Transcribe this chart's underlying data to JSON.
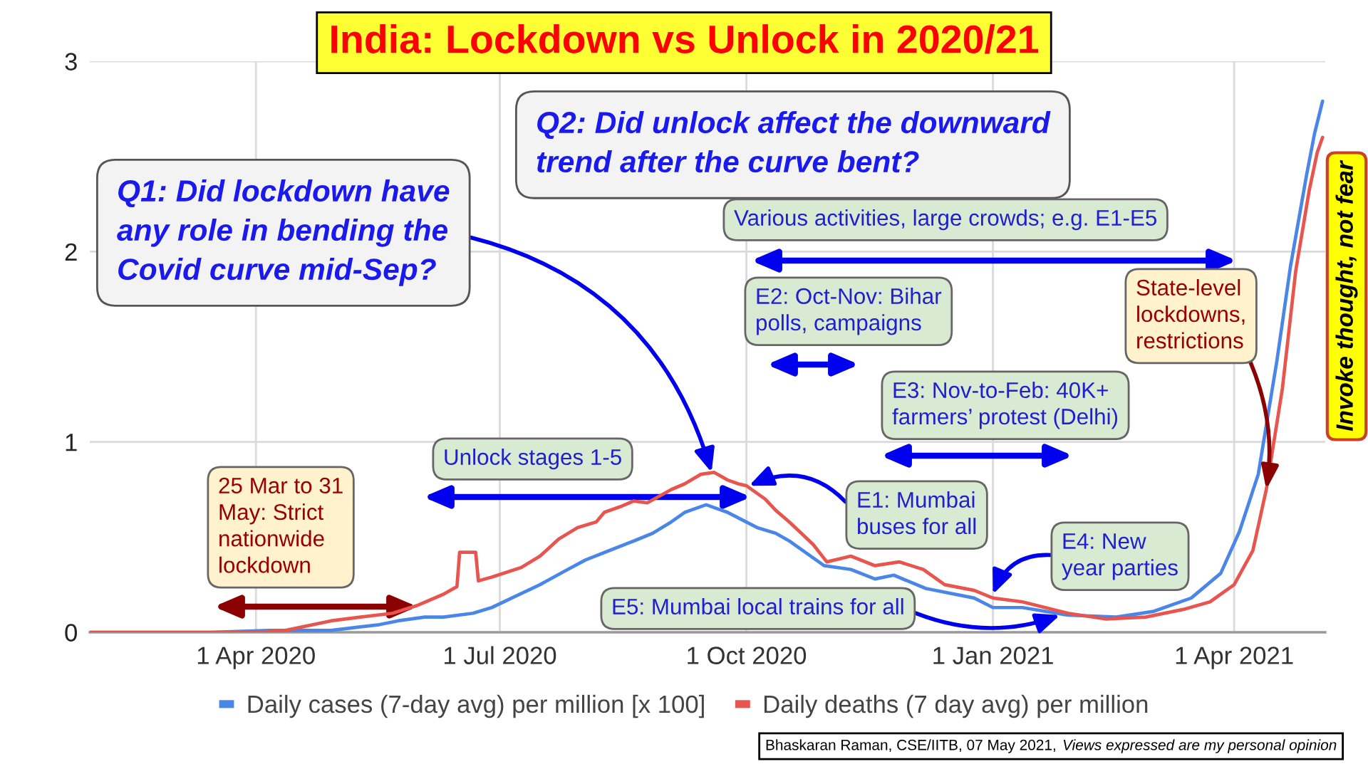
{
  "chart_data": {
    "type": "line",
    "title": "India: Lockdown vs Unlock in 2020/21",
    "series": [
      {
        "name": "Daily cases (7-day avg) per million [x 100]",
        "color": "#4a86e8",
        "x": [
          "2020-01-30",
          "2020-03-15",
          "2020-04-06",
          "2020-04-29",
          "2020-05-17",
          "2020-05-24",
          "2020-06-03",
          "2020-06-10",
          "2020-06-21",
          "2020-06-28",
          "2020-07-07",
          "2020-07-16",
          "2020-07-25",
          "2020-08-02",
          "2020-08-11",
          "2020-08-20",
          "2020-08-27",
          "2020-09-03",
          "2020-09-08",
          "2020-09-16",
          "2020-09-24",
          "2020-10-05",
          "2020-10-12",
          "2020-10-17",
          "2020-10-24",
          "2020-10-30",
          "2020-11-09",
          "2020-11-18",
          "2020-11-25",
          "2020-12-07",
          "2020-12-25",
          "2021-01-01",
          "2021-01-12",
          "2021-01-29",
          "2021-02-16",
          "2021-03-02",
          "2021-03-16",
          "2021-03-27",
          "2021-04-03",
          "2021-04-10",
          "2021-04-17",
          "2021-04-22",
          "2021-04-28",
          "2021-05-01",
          "2021-05-04"
        ],
        "values": [
          0,
          0,
          0.01,
          0.01,
          0.04,
          0.06,
          0.08,
          0.08,
          0.1,
          0.13,
          0.19,
          0.25,
          0.32,
          0.38,
          0.43,
          0.48,
          0.52,
          0.58,
          0.63,
          0.67,
          0.63,
          0.55,
          0.52,
          0.48,
          0.41,
          0.35,
          0.33,
          0.28,
          0.3,
          0.23,
          0.18,
          0.13,
          0.13,
          0.09,
          0.08,
          0.11,
          0.18,
          0.31,
          0.53,
          0.83,
          1.43,
          1.92,
          2.4,
          2.62,
          2.79
        ]
      },
      {
        "name": "Daily deaths (7 day avg) per million",
        "color": "#e8554e",
        "x": [
          "2020-01-30",
          "2020-04-01",
          "2020-04-12",
          "2020-04-29",
          "2020-05-10",
          "2020-05-22",
          "2020-05-31",
          "2020-06-10",
          "2020-06-15",
          "2020-06-16",
          "2020-06-22",
          "2020-06-23",
          "2020-06-28",
          "2020-07-09",
          "2020-07-16",
          "2020-07-23",
          "2020-07-30",
          "2020-08-06",
          "2020-08-09",
          "2020-08-15",
          "2020-08-20",
          "2020-08-25",
          "2020-09-03",
          "2020-09-08",
          "2020-09-14",
          "2020-09-19",
          "2020-09-24",
          "2020-09-28",
          "2020-10-01",
          "2020-10-08",
          "2020-10-12",
          "2020-10-17",
          "2020-10-23",
          "2020-10-26",
          "2020-10-31",
          "2020-11-09",
          "2020-11-18",
          "2020-11-27",
          "2020-12-06",
          "2020-12-14",
          "2020-12-25",
          "2021-01-01",
          "2021-01-12",
          "2021-01-29",
          "2021-02-12",
          "2021-02-27",
          "2021-03-13",
          "2021-03-23",
          "2021-04-01",
          "2021-04-08",
          "2021-04-13",
          "2021-04-19",
          "2021-04-24",
          "2021-04-29",
          "2021-05-02",
          "2021-05-04"
        ],
        "values": [
          0,
          0,
          0.01,
          0.06,
          0.08,
          0.1,
          0.14,
          0.2,
          0.24,
          0.42,
          0.42,
          0.27,
          0.29,
          0.34,
          0.4,
          0.49,
          0.55,
          0.58,
          0.63,
          0.66,
          0.69,
          0.68,
          0.75,
          0.78,
          0.83,
          0.84,
          0.8,
          0.78,
          0.77,
          0.7,
          0.64,
          0.58,
          0.5,
          0.46,
          0.37,
          0.4,
          0.35,
          0.37,
          0.33,
          0.25,
          0.22,
          0.18,
          0.16,
          0.1,
          0.07,
          0.08,
          0.12,
          0.16,
          0.25,
          0.43,
          0.75,
          1.28,
          1.9,
          2.32,
          2.52,
          2.6
        ]
      }
    ],
    "xlim": [
      "2020-01-30",
      "2021-05-05"
    ],
    "xticks": [
      {
        "value": "2020-04-01",
        "label": "1 Apr 2020"
      },
      {
        "value": "2020-07-01",
        "label": "1 Jul 2020"
      },
      {
        "value": "2020-10-01",
        "label": "1 Oct 2020"
      },
      {
        "value": "2021-01-01",
        "label": "1 Jan 2021"
      },
      {
        "value": "2021-04-01",
        "label": "1 Apr 2021"
      }
    ],
    "ylim": [
      0,
      3
    ],
    "yticks": [
      0,
      1,
      2,
      3
    ],
    "grid": true,
    "legend": "bottom",
    "annotations": [
      {
        "text": "Q1: Did lockdown have\nany role in bending the\nCovid curve mid-Sep?",
        "x": "2020-09-18",
        "y": 0.84
      },
      "Q2: Did unlock affect the downward\ntrend after the curve bent?",
      "Various activities, large crowds; e.g. E1-E5",
      "E2: Oct-Nov: Bihar\npolls, campaigns",
      "E3: Nov-to-Feb: 40K+\nfarmers’ protest (Delhi)",
      {
        "text": "State-level\nlockdowns,\nrestrictions",
        "x": "2021-04-13",
        "y": 0.75
      },
      "Unlock stages 1-5",
      "25 Mar to 31\nMay: Strict\nnationwide\nlockdown",
      {
        "text": "E1: Mumbai\nbuses for all",
        "x": "2020-10-02",
        "y": 0.77
      },
      {
        "text": "E4: New\nyear parties",
        "x": "2021-01-01",
        "y": 0.2
      },
      {
        "text": "E5: Mumbai local trains for all",
        "x": "2021-01-26",
        "y": 0.09
      },
      "Invoke thought, not fear",
      "Bhaskaran Raman, CSE/IITB, 07 May 2021,",
      "Views expressed are my personal opinion"
    ]
  }
}
